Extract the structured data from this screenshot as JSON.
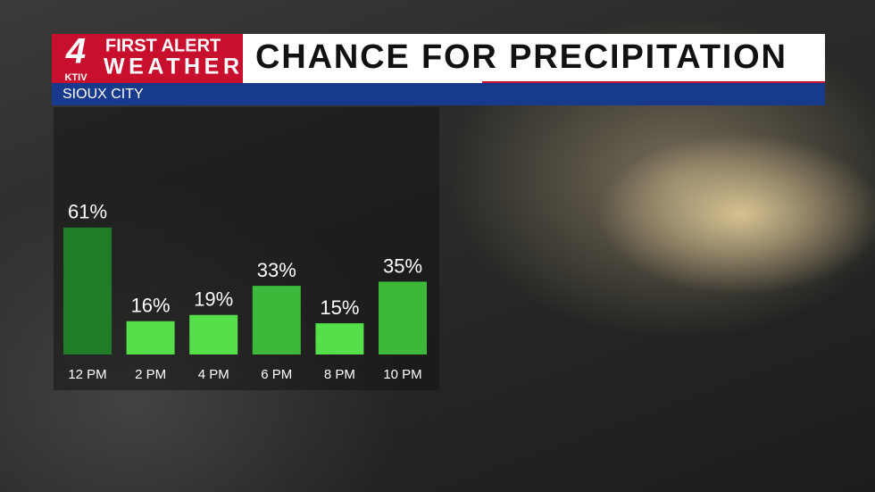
{
  "branding": {
    "channel": "4",
    "station": "KTIV",
    "line1": "FIRST ALERT",
    "line2": "WEATHER"
  },
  "chart_data": {
    "type": "bar",
    "title": "CHANCE FOR PRECIPITATION",
    "subtitle": "SIOUX CITY",
    "categories": [
      "12 PM",
      "2 PM",
      "4 PM",
      "6 PM",
      "8 PM",
      "10 PM"
    ],
    "values": [
      61,
      16,
      19,
      33,
      15,
      35
    ],
    "value_labels": [
      "61%",
      "16%",
      "19%",
      "33%",
      "15%",
      "35%"
    ],
    "colors": [
      "#1f7d27",
      "#55e04b",
      "#55e04b",
      "#3cb93b",
      "#55e04b",
      "#3cb93b"
    ]
  }
}
